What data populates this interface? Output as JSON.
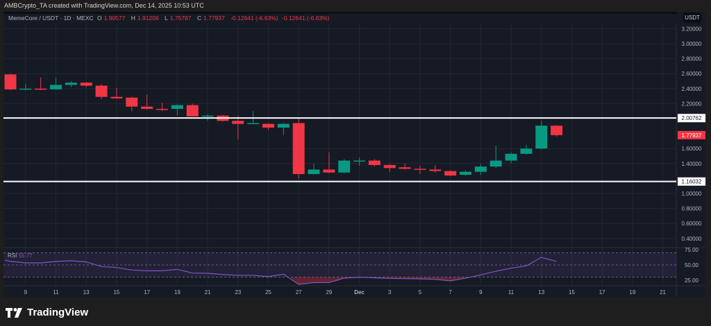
{
  "header": {
    "text": "AMBCrypto_TA created with TradingView.com, Dec 14, 2025 10:53 UTC"
  },
  "legend": {
    "symbol": "MemeCore / USDT · 1D · MEXC",
    "o_label": "O",
    "o": "1.90577",
    "h_label": "H",
    "h": "1.91208",
    "l_label": "L",
    "l": "1.75787",
    "c_label": "C",
    "c": "1.77937",
    "change": "-0.12641 (-6.63%)",
    "change2": "-0.12641 (-6.63%)"
  },
  "currency_button": "USDT",
  "rsi": {
    "label": "RSI",
    "value": "55.77"
  },
  "logo": {
    "text": "TradingView"
  },
  "colors": {
    "up": "#089981",
    "down": "#f23645",
    "background": "#161a25",
    "rsi_line": "#7e57c2",
    "level_line": "#ffffff"
  },
  "chart_data": {
    "type": "candlestick",
    "title": "",
    "x_start": "2025-11-08",
    "dates": [
      "Nov 8",
      "Nov 9",
      "Nov 10",
      "Nov 11",
      "Nov 12",
      "Nov 13",
      "Nov 14",
      "Nov 15",
      "Nov 16",
      "Nov 17",
      "Nov 18",
      "Nov 19",
      "Nov 20",
      "Nov 21",
      "Nov 22",
      "Nov 23",
      "Nov 24",
      "Nov 25",
      "Nov 26",
      "Nov 27",
      "Nov 28",
      "Nov 29",
      "Nov 30",
      "Dec 1",
      "Dec 2",
      "Dec 3",
      "Dec 4",
      "Dec 5",
      "Dec 6",
      "Dec 7",
      "Dec 8",
      "Dec 9",
      "Dec 10",
      "Dec 11",
      "Dec 12",
      "Dec 13",
      "Dec 14"
    ],
    "ohlc": [
      [
        2.59,
        2.6,
        2.38,
        2.39
      ],
      [
        2.39,
        2.46,
        2.38,
        2.4
      ],
      [
        2.4,
        2.55,
        2.38,
        2.39
      ],
      [
        2.39,
        2.54,
        2.39,
        2.45
      ],
      [
        2.45,
        2.5,
        2.42,
        2.48
      ],
      [
        2.48,
        2.49,
        2.42,
        2.44
      ],
      [
        2.44,
        2.46,
        2.26,
        2.29
      ],
      [
        2.29,
        2.41,
        2.27,
        2.27
      ],
      [
        2.28,
        2.29,
        2.1,
        2.16
      ],
      [
        2.16,
        2.32,
        2.12,
        2.13
      ],
      [
        2.13,
        2.21,
        2.1,
        2.12
      ],
      [
        2.13,
        2.19,
        2.04,
        2.18
      ],
      [
        2.18,
        2.2,
        2.03,
        2.03
      ],
      [
        2.03,
        2.06,
        1.97,
        2.04
      ],
      [
        2.04,
        2.05,
        1.96,
        1.97
      ],
      [
        1.97,
        2.04,
        1.72,
        1.93
      ],
      [
        1.93,
        2.1,
        1.93,
        1.94
      ],
      [
        1.93,
        1.94,
        1.85,
        1.88
      ],
      [
        1.88,
        1.94,
        1.78,
        1.93
      ],
      [
        1.94,
        2.01,
        1.2,
        1.26
      ],
      [
        1.26,
        1.4,
        1.25,
        1.32
      ],
      [
        1.32,
        1.55,
        1.27,
        1.28
      ],
      [
        1.28,
        1.46,
        1.27,
        1.44
      ],
      [
        1.43,
        1.48,
        1.37,
        1.44
      ],
      [
        1.44,
        1.46,
        1.36,
        1.38
      ],
      [
        1.38,
        1.39,
        1.29,
        1.34
      ],
      [
        1.35,
        1.4,
        1.32,
        1.33
      ],
      [
        1.33,
        1.37,
        1.26,
        1.32
      ],
      [
        1.32,
        1.38,
        1.28,
        1.3
      ],
      [
        1.3,
        1.31,
        1.23,
        1.24
      ],
      [
        1.25,
        1.31,
        1.24,
        1.29
      ],
      [
        1.29,
        1.4,
        1.25,
        1.36
      ],
      [
        1.36,
        1.64,
        1.34,
        1.44
      ],
      [
        1.44,
        1.55,
        1.4,
        1.53
      ],
      [
        1.53,
        1.65,
        1.52,
        1.6
      ],
      [
        1.6,
        1.97,
        1.59,
        1.90577
      ],
      [
        1.90577,
        1.91208,
        1.75787,
        1.77937
      ]
    ],
    "rsi_values": [
      56,
      53.4,
      53.4,
      55.7,
      57,
      55,
      47.4,
      45.8,
      41.7,
      40.5,
      40.5,
      42.8,
      36.7,
      36.4,
      34.4,
      33,
      33,
      31,
      34.9,
      18.2,
      21.2,
      21.2,
      28.4,
      30,
      29,
      28,
      27.6,
      27.3,
      26.5,
      24,
      28.3,
      33.7,
      39.8,
      44.7,
      48.5,
      62.5,
      55.77
    ],
    "rsi_levels": [
      70,
      50,
      30
    ],
    "horizontal_lines": [
      {
        "price": 2.00762,
        "label": "2.00762"
      },
      {
        "price": 1.16032,
        "label": "1.16032"
      }
    ],
    "last_price": {
      "price": 1.77937,
      "label": "1.77937"
    },
    "y_ticks": [
      {
        "v": 3.2,
        "label": "3.20000"
      },
      {
        "v": 3.0,
        "label": "3.00000"
      },
      {
        "v": 2.8,
        "label": "2.80000"
      },
      {
        "v": 2.6,
        "label": "2.60000"
      },
      {
        "v": 2.4,
        "label": "2.40000"
      },
      {
        "v": 2.2,
        "label": "2.20000"
      },
      {
        "v": 1.6,
        "label": "1.60000"
      },
      {
        "v": 1.4,
        "label": "1.40000"
      },
      {
        "v": 1.0,
        "label": "1.00000"
      },
      {
        "v": 0.8,
        "label": "0.80000"
      },
      {
        "v": 0.6,
        "label": "0.60000"
      },
      {
        "v": 0.4,
        "label": "0.40000"
      }
    ],
    "rsi_ticks": [
      {
        "v": 75,
        "label": "75.00"
      },
      {
        "v": 50,
        "label": "50.00"
      },
      {
        "v": 25,
        "label": "25.00"
      }
    ],
    "x_ticks": [
      {
        "d": 1,
        "label": "9"
      },
      {
        "d": 3,
        "label": "11"
      },
      {
        "d": 5,
        "label": "13"
      },
      {
        "d": 7,
        "label": "15"
      },
      {
        "d": 9,
        "label": "17"
      },
      {
        "d": 11,
        "label": "19"
      },
      {
        "d": 13,
        "label": "21"
      },
      {
        "d": 15,
        "label": "23"
      },
      {
        "d": 17,
        "label": "25"
      },
      {
        "d": 19,
        "label": "27"
      },
      {
        "d": 21,
        "label": "29"
      },
      {
        "d": 23,
        "label": "Dec"
      },
      {
        "d": 25,
        "label": "3"
      },
      {
        "d": 27,
        "label": "5"
      },
      {
        "d": 29,
        "label": "7"
      },
      {
        "d": 31,
        "label": "9"
      },
      {
        "d": 33,
        "label": "11"
      },
      {
        "d": 35,
        "label": "13"
      },
      {
        "d": 37,
        "label": "15"
      },
      {
        "d": 39,
        "label": "17"
      },
      {
        "d": 41,
        "label": "19"
      },
      {
        "d": 43,
        "label": "21"
      }
    ],
    "grid": true
  }
}
